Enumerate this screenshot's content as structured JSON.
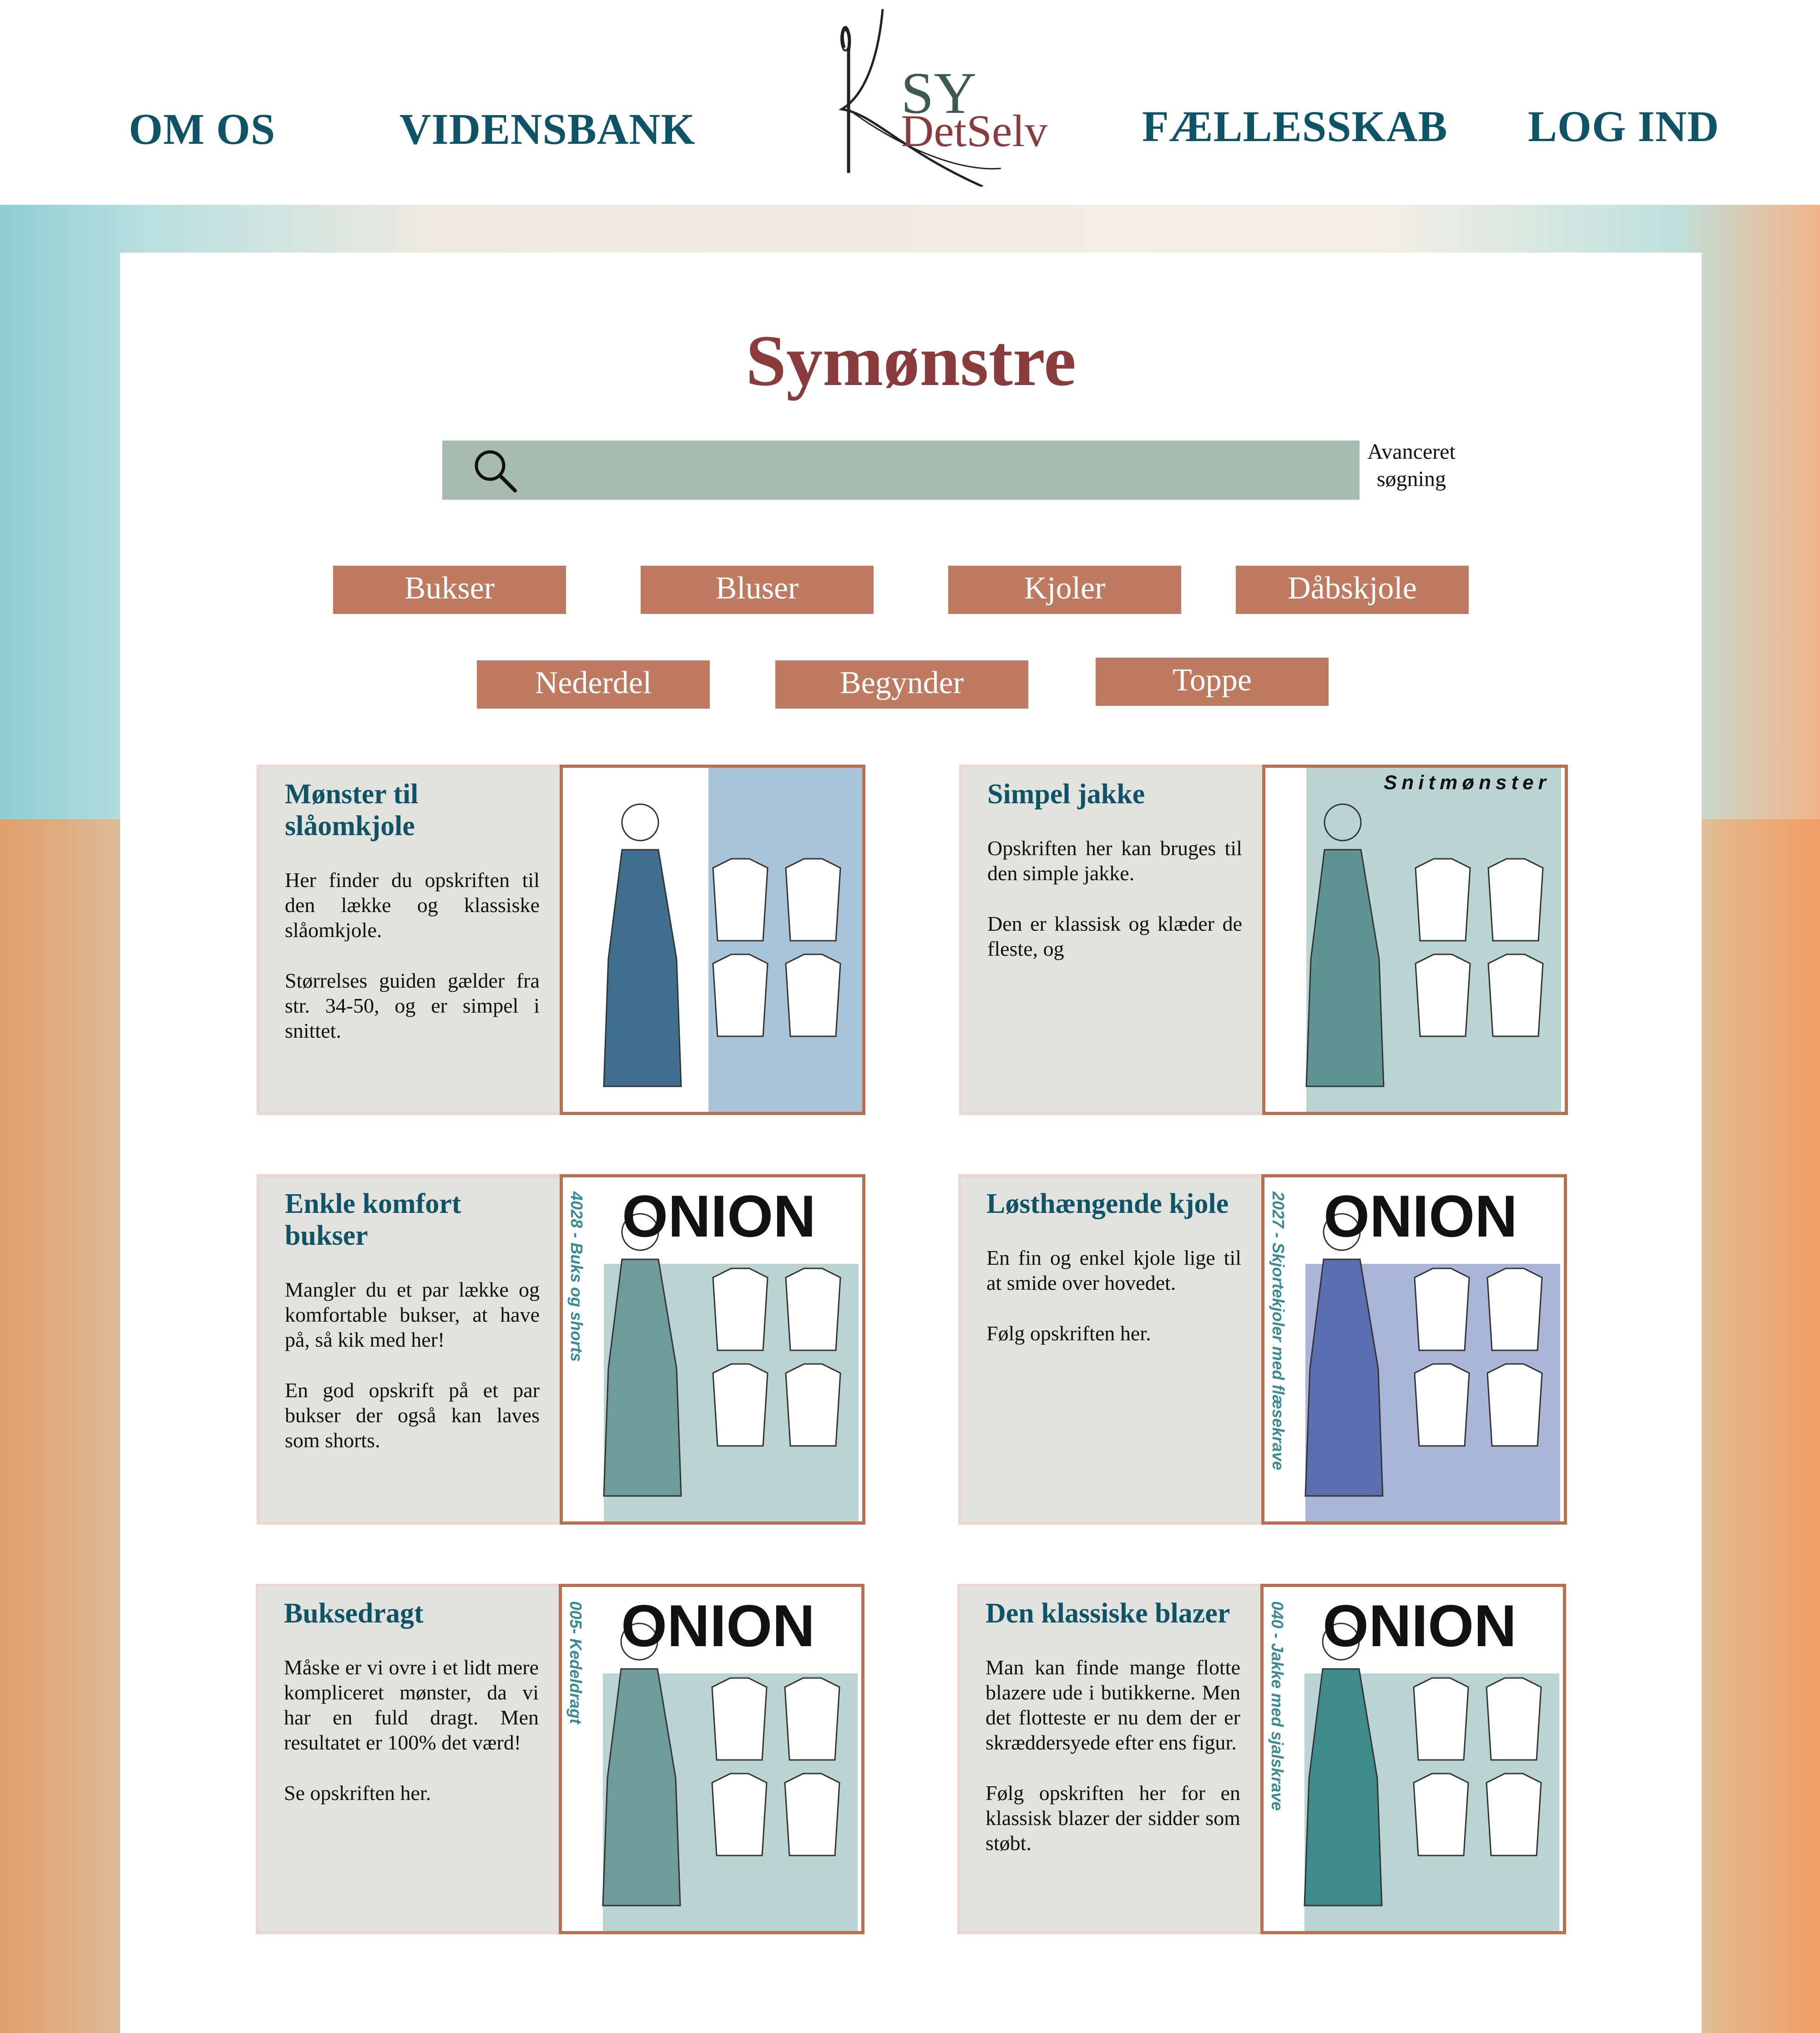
{
  "nav": {
    "left": [
      "OM OS",
      "VIDENSBANK"
    ],
    "right": [
      "FÆLLESSKAB",
      "LOG IND"
    ],
    "logo": {
      "line1": "SY",
      "line2": "DetSelv"
    }
  },
  "page": {
    "title": "Symønstre",
    "search": {
      "placeholder": "",
      "advanced_label": "Avanceret søgning"
    },
    "categories": [
      "Bukser",
      "Bluser",
      "Kjoler",
      "Dåbskjole",
      "Nederdel",
      "Begynder",
      "Toppe"
    ]
  },
  "cards": [
    {
      "title": "Mønster til slåomkjole",
      "paragraphs": [
        "Her finder du opskriften til den lække og klassiske slåomkjole.",
        "Størrelses guiden gælder fra str. 34-50, og er simpel i snittet."
      ],
      "image": {
        "brand": "",
        "code": "",
        "colors": [
          "#a9c3d9",
          "#3f6f8f"
        ]
      }
    },
    {
      "title": "Simpel jakke",
      "paragraphs": [
        "Opskriften her kan bruges til den simple jakke.",
        "Den er klassisk og klæder de fleste, og"
      ],
      "image": {
        "brand": "Snitmønster",
        "code": "",
        "colors": [
          "#b9d4d2",
          "#5e9593"
        ]
      }
    },
    {
      "title": "Enkle komfort bukser",
      "paragraphs": [
        "Mangler du et par lække og komfortable bukser, at have på, så kik med her!",
        "En god opskrift på et par bukser der også kan laves som shorts."
      ],
      "image": {
        "brand": "ONION",
        "code": "4028 - Buks og shorts",
        "colors": [
          "#b9d4d2",
          "#6f9c9a"
        ]
      }
    },
    {
      "title": "Løsthængende kjole",
      "paragraphs": [
        "En fin og enkel kjole lige til at smide over hovedet.",
        "Følg opskriften her."
      ],
      "image": {
        "brand": "ONION",
        "code": "2027 - Skjortekjoler med flæsekrave",
        "colors": [
          "#aab5d8",
          "#5b6fb0"
        ]
      }
    },
    {
      "title": "Buksedragt",
      "paragraphs": [
        "Måske er vi ovre i et lidt mere kompliceret mønster, da vi har en fuld dragt. Men resultatet er 100% det værd!",
        "Se opskriften her."
      ],
      "image": {
        "brand": "ONION",
        "code": "005- Kedeldragt",
        "colors": [
          "#b9d4d2",
          "#6f9c9a"
        ]
      }
    },
    {
      "title": "Den klassiske blazer",
      "paragraphs": [
        "Man kan finde mange flotte blazere ude i butikkerne. Men det flotteste er nu dem der er skræddersyede efter ens figur.",
        "Følg opskriften her for en klassisk blazer der sidder som støbt."
      ],
      "image": {
        "brand": "ONION",
        "code": "040 - Jakke med sjalskrave",
        "colors": [
          "#b9d4d2",
          "#3f8a8a"
        ]
      }
    }
  ]
}
